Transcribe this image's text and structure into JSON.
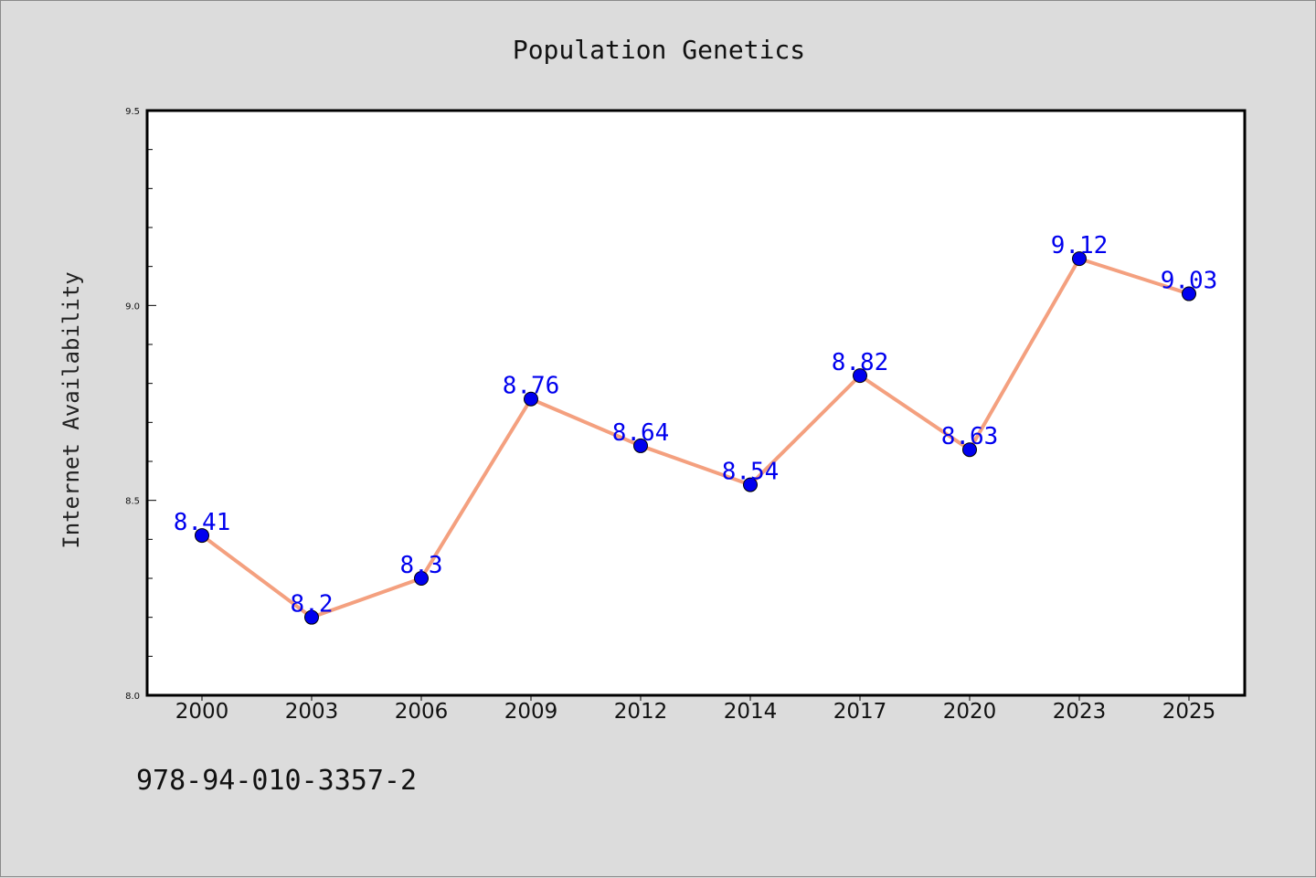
{
  "chart_data": {
    "type": "line",
    "title": "Population Genetics",
    "xlabel": "",
    "ylabel": "Internet Availability",
    "categories": [
      "2000",
      "2003",
      "2006",
      "2009",
      "2012",
      "2014",
      "2017",
      "2020",
      "2023",
      "2025"
    ],
    "series": [
      {
        "values": [
          8.41,
          8.2,
          8.3,
          8.76,
          8.64,
          8.54,
          8.82,
          8.63,
          9.12,
          9.03
        ],
        "data_labels": [
          "8.41",
          "8.2",
          "8.3",
          "8.76",
          "8.64",
          "8.54",
          "8.82",
          "8.63",
          "9.12",
          "9.03"
        ]
      }
    ],
    "ylim": [
      8.0,
      9.5
    ],
    "yticks": [
      "8.0",
      "8.5",
      "9.0",
      "9.5"
    ],
    "grid": false,
    "colors": {
      "line": "#f4a07f",
      "marker": "#0000ee",
      "labels": "#0000ee",
      "plot_bg": "#ffffff",
      "page_bg": "#dcdcdc"
    }
  },
  "annotation": "978-94-010-3357-2"
}
